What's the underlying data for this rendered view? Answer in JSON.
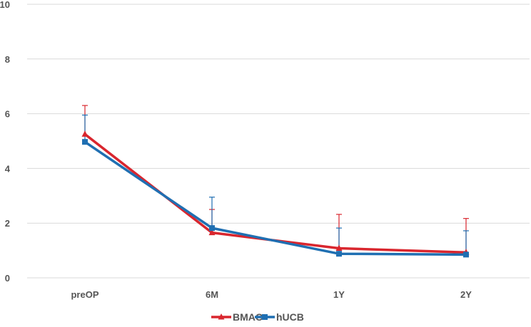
{
  "chart_data": {
    "type": "line",
    "title": "",
    "xlabel": "",
    "ylabel": "",
    "categories": [
      "preOP",
      "6M",
      "1Y",
      "2Y"
    ],
    "ylim": [
      0,
      10
    ],
    "yticks": [
      0,
      2,
      4,
      6,
      8,
      10
    ],
    "grid": true,
    "legend_position": "bottom",
    "series": [
      {
        "name": "BMAC",
        "color": "#d9262e",
        "marker": "triangle",
        "values": [
          5.25,
          1.65,
          1.08,
          0.93
        ],
        "error_upper": [
          6.3,
          2.5,
          2.32,
          2.17
        ]
      },
      {
        "name": "hUCB",
        "color": "#1f6fb2",
        "marker": "square",
        "values": [
          4.97,
          1.82,
          0.88,
          0.85
        ],
        "error_upper": [
          5.95,
          2.95,
          1.82,
          1.72
        ]
      }
    ],
    "grid_color": "#d9d9d9",
    "text_color": "#555555"
  }
}
